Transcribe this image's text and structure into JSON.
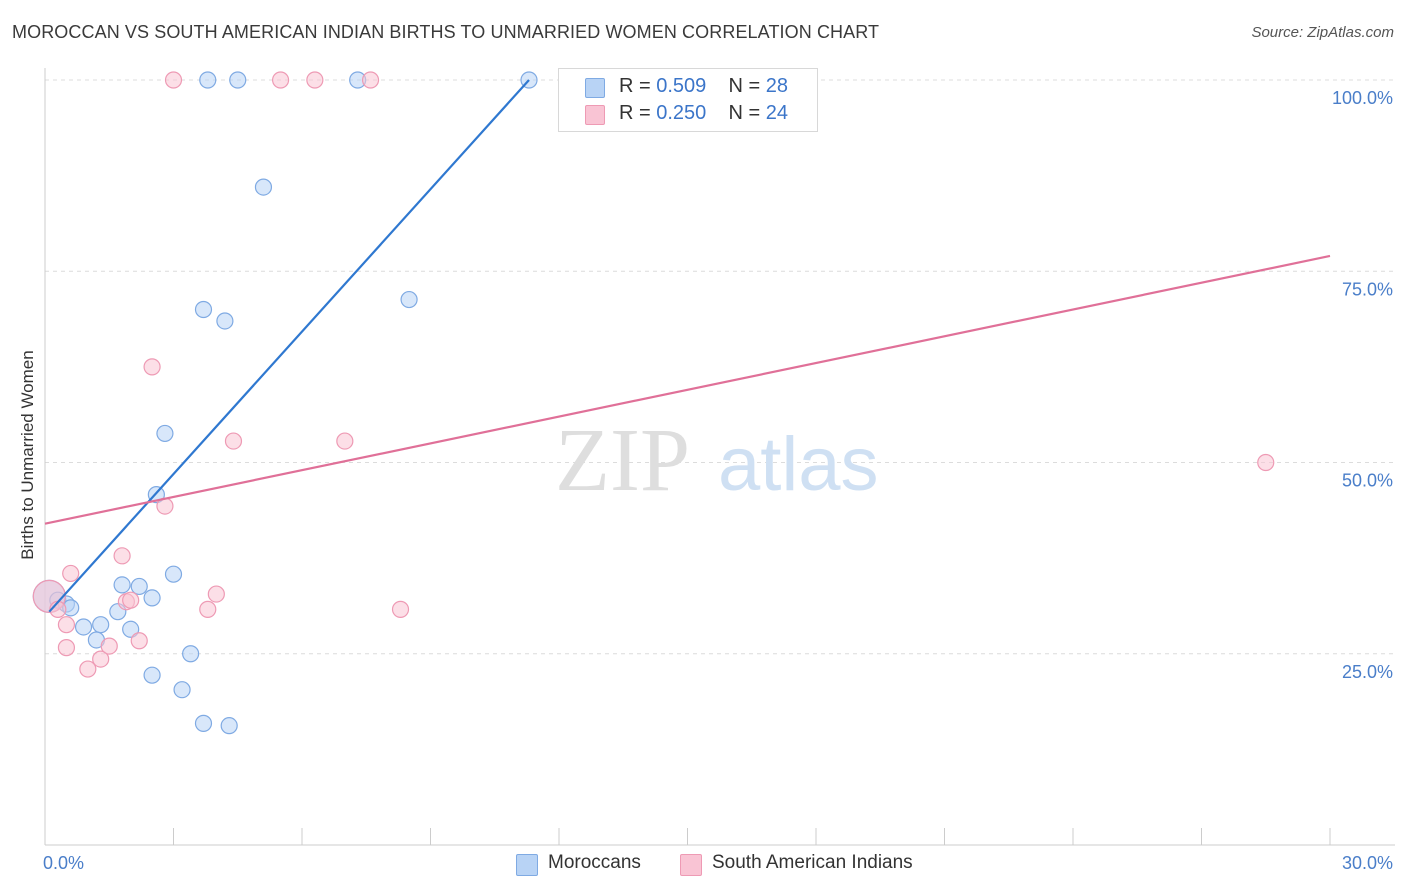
{
  "title": "MOROCCAN VS SOUTH AMERICAN INDIAN BIRTHS TO UNMARRIED WOMEN CORRELATION CHART",
  "source": "Source: ZipAtlas.com",
  "watermark": {
    "zip": "ZIP",
    "atlas": "atlas"
  },
  "legend": {
    "r_label": "R =",
    "n_label": "N =",
    "rows": [
      {
        "r": "0.509",
        "n": "28"
      },
      {
        "r": "0.250",
        "n": "24"
      }
    ]
  },
  "colors": {
    "moroccan_fill": "#b8d3f5",
    "moroccan_stroke": "#7faae3",
    "moroccan_line": "#2f78d0",
    "sai_fill": "#f9c4d4",
    "sai_stroke": "#ee9ab4",
    "sai_line": "#e07098",
    "tick_text": "#4a7ec9",
    "grid": "#dcdcdc"
  },
  "chart_data": {
    "type": "scatter",
    "title": "MOROCCAN VS SOUTH AMERICAN INDIAN BIRTHS TO UNMARRIED WOMEN CORRELATION CHART",
    "xlabel": "",
    "ylabel": "Births to Unmarried Women",
    "xlim": [
      0,
      30
    ],
    "ylim": [
      0,
      100
    ],
    "x_tick_labels": [
      "0.0%",
      "30.0%"
    ],
    "y_ticks": [
      25,
      50,
      75,
      100
    ],
    "y_tick_labels": [
      "25.0%",
      "50.0%",
      "75.0%",
      "100.0%"
    ],
    "series": [
      {
        "name": "Moroccans",
        "r": 0.509,
        "n": 28,
        "points": [
          [
            0.1,
            32.5
          ],
          [
            0.3,
            32.0
          ],
          [
            0.5,
            31.5
          ],
          [
            0.6,
            31.0
          ],
          [
            0.9,
            28.5
          ],
          [
            1.3,
            28.8
          ],
          [
            1.2,
            26.8
          ],
          [
            1.8,
            34.0
          ],
          [
            1.7,
            30.5
          ],
          [
            2.0,
            28.2
          ],
          [
            2.2,
            33.8
          ],
          [
            2.5,
            32.3
          ],
          [
            2.6,
            45.8
          ],
          [
            2.5,
            22.2
          ],
          [
            2.8,
            53.8
          ],
          [
            3.0,
            35.4
          ],
          [
            3.2,
            20.3
          ],
          [
            3.4,
            25.0
          ],
          [
            3.7,
            70.0
          ],
          [
            3.7,
            15.9
          ],
          [
            4.2,
            68.5
          ],
          [
            4.3,
            15.6
          ],
          [
            3.8,
            100.0
          ],
          [
            4.5,
            100.0
          ],
          [
            5.1,
            86.0
          ],
          [
            7.3,
            100.0
          ],
          [
            8.5,
            71.3
          ],
          [
            11.3,
            100.0
          ]
        ],
        "trend": [
          [
            0.1,
            30.5
          ],
          [
            11.3,
            100.0
          ]
        ]
      },
      {
        "name": "South American Indians",
        "r": 0.25,
        "n": 24,
        "points": [
          [
            0.1,
            32.5
          ],
          [
            0.3,
            30.8
          ],
          [
            0.5,
            28.8
          ],
          [
            0.5,
            25.8
          ],
          [
            0.6,
            35.5
          ],
          [
            1.0,
            23.0
          ],
          [
            1.3,
            24.3
          ],
          [
            1.5,
            26.0
          ],
          [
            1.8,
            37.8
          ],
          [
            1.9,
            31.8
          ],
          [
            2.0,
            32.0
          ],
          [
            2.2,
            26.7
          ],
          [
            2.5,
            62.5
          ],
          [
            2.8,
            44.3
          ],
          [
            3.0,
            100.0
          ],
          [
            3.8,
            30.8
          ],
          [
            4.0,
            32.8
          ],
          [
            4.4,
            52.8
          ],
          [
            5.5,
            100.0
          ],
          [
            6.3,
            100.0
          ],
          [
            7.0,
            52.8
          ],
          [
            7.6,
            100.0
          ],
          [
            8.3,
            30.8
          ],
          [
            28.5,
            50.0
          ]
        ],
        "trend": [
          [
            0.0,
            42.0
          ],
          [
            30.0,
            77.0
          ]
        ]
      }
    ]
  }
}
